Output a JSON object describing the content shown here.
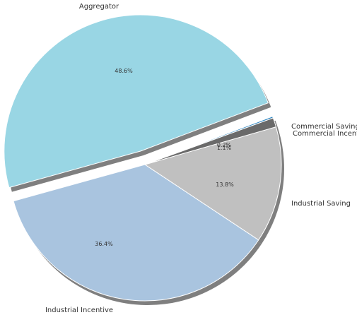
{
  "chart_data": {
    "type": "pie",
    "slices": [
      {
        "label": "Commercial Saving",
        "value": 0.2,
        "pct_label": "0.2%",
        "color": "#2e86c1",
        "explode": false
      },
      {
        "label": "Aggregator",
        "value": 48.6,
        "pct_label": "48.6%",
        "color": "#99d6e4",
        "explode": true
      },
      {
        "label": "Industrial Incentive",
        "value": 36.4,
        "pct_label": "36.4%",
        "color": "#a9c4df",
        "explode": false
      },
      {
        "label": "Industrial Saving",
        "value": 13.8,
        "pct_label": "13.8%",
        "color": "#c0c0c0",
        "explode": false
      },
      {
        "label": "Commercial Incentive",
        "value": 1.1,
        "pct_label": "1.1%",
        "color": "#6a6a6a",
        "explode": false
      }
    ],
    "shadow": true
  }
}
